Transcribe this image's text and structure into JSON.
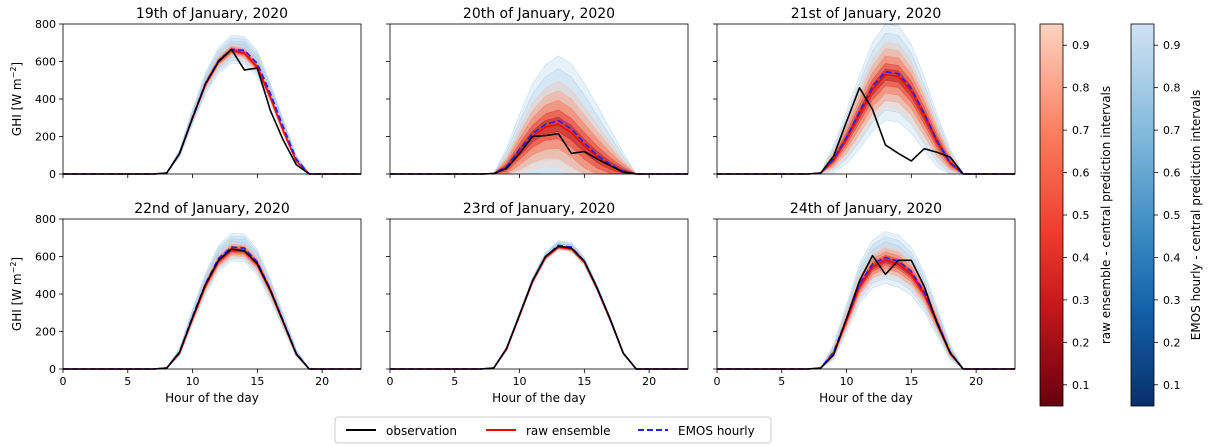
{
  "chart_data": {
    "type": "line",
    "ylabel": "GHI [W m$^{-2}$]",
    "ylabel_text": "GHI [W m",
    "ylabel_sup": "−2",
    "ylabel_close": "]",
    "xlabel": "Hour of the day",
    "xlim": [
      0,
      23
    ],
    "ylim": [
      0,
      800
    ],
    "xticks": [
      "0",
      "5",
      "10",
      "15",
      "20"
    ],
    "yticks": [
      "0",
      "200",
      "400",
      "600",
      "800"
    ],
    "legend": [
      "observation",
      "raw ensemble",
      "EMOS hourly"
    ],
    "legend_position": "bottom-center",
    "colorbar_raw_label": "raw ensemble - central prediction intervals",
    "colorbar_emos_label": "EMOS hourly - central prediction intervals",
    "colorbar_ticks": [
      "0.1",
      "0.2",
      "0.3",
      "0.4",
      "0.5",
      "0.6",
      "0.7",
      "0.8",
      "0.9"
    ],
    "colors": {
      "observation": "#000000",
      "raw": "#ff0000",
      "emos": "#1f1fff"
    },
    "panels": [
      {
        "title": "19th of January, 2020",
        "x": [
          0,
          1,
          2,
          3,
          4,
          5,
          6,
          7,
          8,
          9,
          10,
          11,
          12,
          13,
          14,
          15,
          16,
          17,
          18,
          19,
          20,
          21,
          22,
          23
        ],
        "observation": [
          0,
          0,
          0,
          0,
          0,
          0,
          0,
          0,
          5,
          110,
          300,
          480,
          600,
          665,
          555,
          565,
          340,
          180,
          50,
          0,
          0,
          0,
          0,
          0
        ],
        "raw_ensemble": [
          0,
          0,
          0,
          0,
          0,
          0,
          0,
          0,
          5,
          110,
          300,
          480,
          600,
          660,
          645,
          570,
          410,
          230,
          70,
          0,
          0,
          0,
          0,
          0
        ],
        "emos_hourly": [
          0,
          0,
          0,
          0,
          0,
          0,
          0,
          0,
          5,
          110,
          305,
          485,
          605,
          665,
          660,
          590,
          430,
          250,
          80,
          0,
          0,
          0,
          0,
          0
        ],
        "spread_raw": 35,
        "spread_emos": 75
      },
      {
        "title": "20th of January, 2020",
        "x": [
          0,
          1,
          2,
          3,
          4,
          5,
          6,
          7,
          8,
          9,
          10,
          11,
          12,
          13,
          14,
          15,
          16,
          17,
          18,
          19,
          20,
          21,
          22,
          23
        ],
        "observation": [
          0,
          0,
          0,
          0,
          0,
          0,
          0,
          0,
          2,
          30,
          110,
          200,
          205,
          215,
          110,
          120,
          80,
          45,
          10,
          0,
          0,
          0,
          0,
          0
        ],
        "raw_ensemble": [
          0,
          0,
          0,
          0,
          0,
          0,
          0,
          0,
          2,
          35,
          120,
          200,
          250,
          265,
          220,
          150,
          90,
          45,
          15,
          0,
          0,
          0,
          0,
          0
        ],
        "emos_hourly": [
          0,
          0,
          0,
          0,
          0,
          0,
          0,
          0,
          2,
          40,
          130,
          215,
          265,
          285,
          240,
          165,
          100,
          50,
          15,
          0,
          0,
          0,
          0,
          0
        ],
        "spread_raw": 260,
        "spread_emos": 350
      },
      {
        "title": "21st of January, 2020",
        "x": [
          0,
          1,
          2,
          3,
          4,
          5,
          6,
          7,
          8,
          9,
          10,
          11,
          12,
          13,
          14,
          15,
          16,
          17,
          18,
          19,
          20,
          21,
          22,
          23
        ],
        "observation": [
          0,
          0,
          0,
          0,
          0,
          0,
          0,
          0,
          5,
          95,
          280,
          460,
          345,
          155,
          110,
          70,
          135,
          115,
          90,
          0,
          0,
          0,
          0,
          0
        ],
        "raw_ensemble": [
          0,
          0,
          0,
          0,
          0,
          0,
          0,
          0,
          5,
          75,
          190,
          320,
          450,
          530,
          520,
          440,
          310,
          170,
          60,
          0,
          0,
          0,
          0,
          0
        ],
        "emos_hourly": [
          0,
          0,
          0,
          0,
          0,
          0,
          0,
          0,
          5,
          80,
          195,
          330,
          465,
          545,
          535,
          455,
          320,
          175,
          60,
          0,
          0,
          0,
          0,
          0
        ],
        "spread_raw": 200,
        "spread_emos": 260
      },
      {
        "title": "22nd of January, 2020",
        "x": [
          0,
          1,
          2,
          3,
          4,
          5,
          6,
          7,
          8,
          9,
          10,
          11,
          12,
          13,
          14,
          15,
          16,
          17,
          18,
          19,
          20,
          21,
          22,
          23
        ],
        "observation": [
          0,
          0,
          0,
          0,
          0,
          0,
          0,
          0,
          5,
          90,
          275,
          450,
          580,
          640,
          630,
          560,
          420,
          250,
          80,
          0,
          0,
          0,
          0,
          0
        ],
        "raw_ensemble": [
          0,
          0,
          0,
          0,
          0,
          0,
          0,
          0,
          5,
          85,
          270,
          445,
          575,
          635,
          630,
          560,
          420,
          250,
          80,
          0,
          0,
          0,
          0,
          0
        ],
        "emos_hourly": [
          0,
          0,
          0,
          0,
          0,
          0,
          0,
          0,
          5,
          90,
          280,
          455,
          590,
          650,
          645,
          570,
          425,
          255,
          85,
          0,
          0,
          0,
          0,
          0
        ],
        "spread_raw": 45,
        "spread_emos": 75
      },
      {
        "title": "23rd of January, 2020",
        "x": [
          0,
          1,
          2,
          3,
          4,
          5,
          6,
          7,
          8,
          9,
          10,
          11,
          12,
          13,
          14,
          15,
          16,
          17,
          18,
          19,
          20,
          21,
          22,
          23
        ],
        "observation": [
          0,
          0,
          0,
          0,
          0,
          0,
          0,
          0,
          5,
          110,
          290,
          470,
          600,
          655,
          645,
          575,
          430,
          265,
          85,
          0,
          0,
          0,
          0,
          0
        ],
        "raw_ensemble": [
          0,
          0,
          0,
          0,
          0,
          0,
          0,
          0,
          5,
          105,
          285,
          465,
          595,
          650,
          640,
          570,
          425,
          260,
          85,
          0,
          0,
          0,
          0,
          0
        ],
        "emos_hourly": [
          0,
          0,
          0,
          0,
          0,
          0,
          0,
          0,
          5,
          110,
          290,
          470,
          600,
          660,
          650,
          575,
          430,
          265,
          85,
          0,
          0,
          0,
          0,
          0
        ],
        "spread_raw": 15,
        "spread_emos": 25
      },
      {
        "title": "24th of January, 2020",
        "x": [
          0,
          1,
          2,
          3,
          4,
          5,
          6,
          7,
          8,
          9,
          10,
          11,
          12,
          13,
          14,
          15,
          16,
          17,
          18,
          19,
          20,
          21,
          22,
          23
        ],
        "observation": [
          0,
          0,
          0,
          0,
          0,
          0,
          0,
          0,
          5,
          75,
          270,
          470,
          605,
          505,
          580,
          580,
          440,
          240,
          85,
          0,
          0,
          0,
          0,
          0
        ],
        "raw_ensemble": [
          0,
          0,
          0,
          0,
          0,
          0,
          0,
          0,
          5,
          85,
          260,
          440,
          545,
          580,
          560,
          505,
          400,
          245,
          85,
          0,
          0,
          0,
          0,
          0
        ],
        "emos_hourly": [
          0,
          0,
          0,
          0,
          0,
          0,
          0,
          0,
          5,
          90,
          270,
          455,
          560,
          595,
          575,
          520,
          410,
          250,
          90,
          0,
          0,
          0,
          0,
          0
        ],
        "spread_raw": 90,
        "spread_emos": 140
      }
    ]
  }
}
